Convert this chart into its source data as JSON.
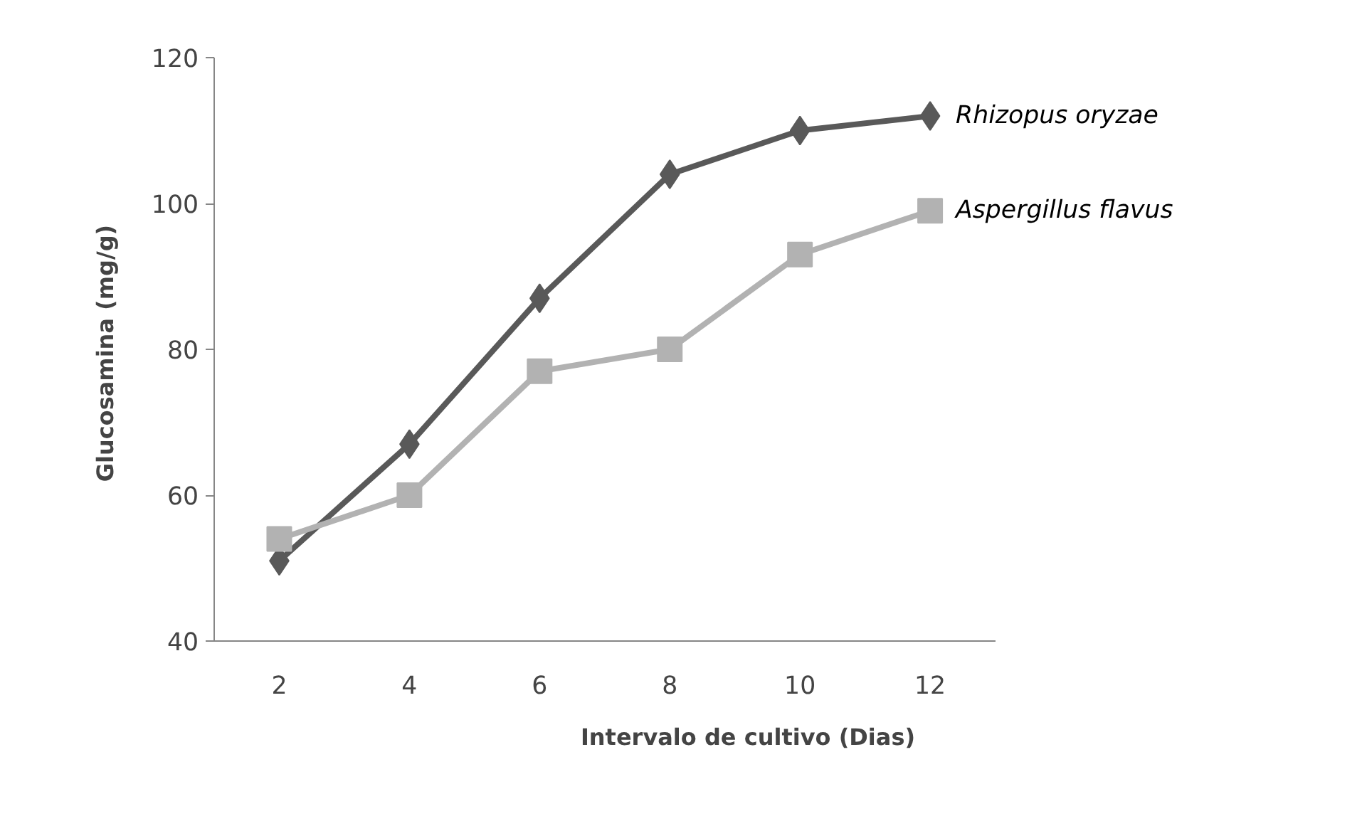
{
  "chart_data": {
    "type": "line",
    "xlabel": "Intervalo de cultivo (Dias)",
    "ylabel": "Glucosamina  (mg/g)",
    "categories": [
      "2",
      "4",
      "6",
      "8",
      "10",
      "12"
    ],
    "series": [
      {
        "name": "Rhizopus oryzae",
        "color": "#595959",
        "marker": "diamond",
        "values": [
          51,
          67,
          87,
          104,
          110,
          112
        ]
      },
      {
        "name": "Aspergillus flavus",
        "color": "#b2b2b2",
        "marker": "square",
        "values": [
          54,
          60,
          77,
          80,
          93,
          99
        ]
      }
    ],
    "ylim": [
      40,
      120
    ],
    "yticks": [
      40,
      60,
      80,
      100,
      120
    ],
    "grid": false
  }
}
